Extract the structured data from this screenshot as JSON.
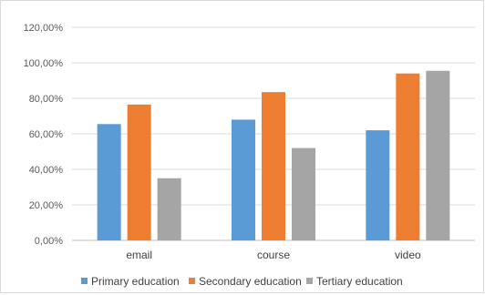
{
  "chart_data": {
    "type": "bar",
    "categories": [
      "email",
      "course",
      "video"
    ],
    "series": [
      {
        "name": "Primary education",
        "color": "#5b9bd5",
        "values": [
          65.5,
          68.0,
          62.0
        ]
      },
      {
        "name": "Secondary education",
        "color": "#ed7d31",
        "values": [
          76.5,
          83.5,
          94.0
        ]
      },
      {
        "name": "Tertiary education",
        "color": "#a5a5a5",
        "values": [
          35.0,
          52.0,
          95.5
        ]
      }
    ],
    "y_ticks": [
      "0,00%",
      "20,00%",
      "40,00%",
      "60,00%",
      "80,00%",
      "100,00%",
      "120,00%"
    ],
    "ylim": [
      0,
      120
    ],
    "grid": true,
    "legend": "bottom"
  }
}
